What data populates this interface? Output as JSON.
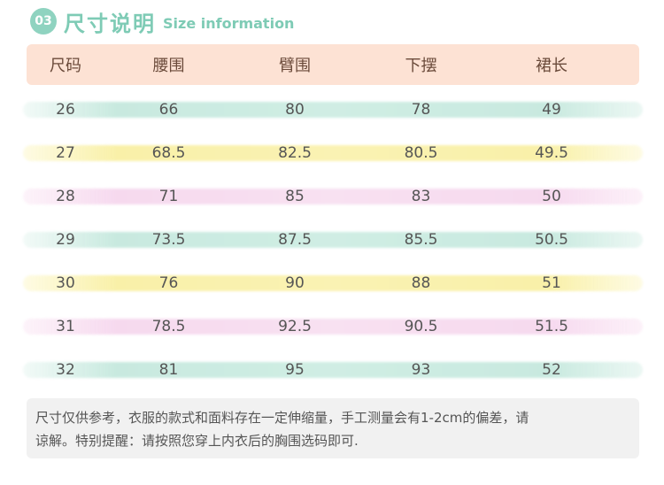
{
  "title": {
    "badge": "03",
    "cn": "尺寸说明",
    "en": "Size information"
  },
  "table": {
    "headers": [
      "尺码",
      "腰围",
      "臂围",
      "下摆",
      "裙长"
    ],
    "rows": [
      [
        "26",
        "66",
        "80",
        "78",
        "49"
      ],
      [
        "27",
        "68.5",
        "82.5",
        "80.5",
        "49.5"
      ],
      [
        "28",
        "71",
        "85",
        "83",
        "50"
      ],
      [
        "29",
        "73.5",
        "87.5",
        "85.5",
        "50.5"
      ],
      [
        "30",
        "76",
        "90",
        "88",
        "51"
      ],
      [
        "31",
        "78.5",
        "92.5",
        "90.5",
        "51.5"
      ],
      [
        "32",
        "81",
        "95",
        "93",
        "52"
      ]
    ],
    "stripe_colors": [
      "#c8ebe0",
      "#faf0a6",
      "#f7dcef",
      "#c8ebe0",
      "#faf0a6",
      "#f7dcef",
      "#c8ebe0"
    ]
  },
  "note": {
    "line1": "尺寸仅供参考，衣服的款式和面料存在一定伸缩量，手工测量会有1-2cm的偏差，请",
    "line2": "谅解。特别提醒：请按照您穿上内衣后的胸围选码即可."
  }
}
